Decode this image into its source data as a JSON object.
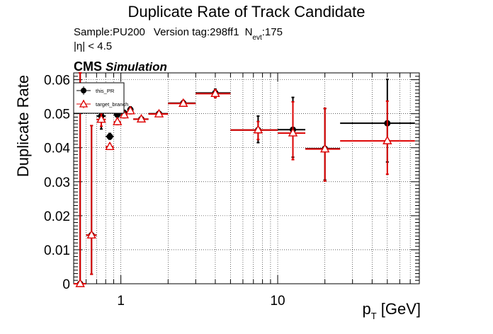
{
  "chart_data": {
    "type": "scatter",
    "title": "Duplicate Rate of Track Candidate",
    "info_line": {
      "sample": "Sample:PU200",
      "version": "Version tag:298ff1",
      "nevt_label": "N",
      "nevt_sub": "evt",
      "nevt_value": ":175"
    },
    "eta_cut": "|η| < 4.5",
    "cms_label": "CMS",
    "simulation_label": "Simulation",
    "xlabel_main": "p",
    "xlabel_sub": "T",
    "xlabel_unit": " [GeV]",
    "ylabel": "Duplicate Rate",
    "xscale": "log",
    "xlim": [
      0.5,
      80
    ],
    "ylim": [
      0,
      0.062
    ],
    "grid": true,
    "legend_position": "top-left",
    "x_tick_labels": [
      {
        "value": 1,
        "label": "1"
      },
      {
        "value": 10,
        "label": "10"
      }
    ],
    "y_tick_labels": [
      {
        "value": 0,
        "label": "0"
      },
      {
        "value": 0.01,
        "label": "0.01"
      },
      {
        "value": 0.02,
        "label": "0.02"
      },
      {
        "value": 0.03,
        "label": "0.03"
      },
      {
        "value": 0.04,
        "label": "0.04"
      },
      {
        "value": 0.05,
        "label": "0.05"
      },
      {
        "value": 0.06,
        "label": "0.06"
      }
    ],
    "series": [
      {
        "name": "this_PR",
        "color": "#000000",
        "marker": "filled-circle",
        "points": [
          {
            "x": 0.55,
            "xlo": 0.5,
            "xhi": 0.6,
            "y": 0.0,
            "ylo": 0.0,
            "yhi": 0.062
          },
          {
            "x": 0.65,
            "xlo": 0.6,
            "xhi": 0.7,
            "y": 0.0143,
            "ylo": 0.0028,
            "yhi": 0.0465
          },
          {
            "x": 0.75,
            "xlo": 0.7,
            "xhi": 0.8,
            "y": 0.0493,
            "ylo": 0.0455,
            "yhi": 0.051
          },
          {
            "x": 0.85,
            "xlo": 0.8,
            "xhi": 0.9,
            "y": 0.0433,
            "ylo": 0.0425,
            "yhi": 0.0442
          },
          {
            "x": 0.95,
            "xlo": 0.9,
            "xhi": 1.0,
            "y": 0.0497,
            "ylo": 0.049,
            "yhi": 0.0503
          },
          {
            "x": 1.05,
            "xlo": 1.0,
            "xhi": 1.1,
            "y": 0.0502,
            "ylo": 0.0494,
            "yhi": 0.051
          },
          {
            "x": 1.15,
            "xlo": 1.1,
            "xhi": 1.2,
            "y": 0.0512,
            "ylo": 0.0504,
            "yhi": 0.052
          },
          {
            "x": 1.35,
            "xlo": 1.2,
            "xhi": 1.5,
            "y": 0.0484,
            "ylo": 0.0479,
            "yhi": 0.049
          },
          {
            "x": 1.75,
            "xlo": 1.5,
            "xhi": 2.0,
            "y": 0.05,
            "ylo": 0.0494,
            "yhi": 0.0506
          },
          {
            "x": 2.5,
            "xlo": 2.0,
            "xhi": 3.0,
            "y": 0.0531,
            "ylo": 0.0524,
            "yhi": 0.0539
          },
          {
            "x": 4.0,
            "xlo": 3.0,
            "xhi": 5.0,
            "y": 0.0561,
            "ylo": 0.0549,
            "yhi": 0.0572
          },
          {
            "x": 7.5,
            "xlo": 5.0,
            "xhi": 10.0,
            "y": 0.0452,
            "ylo": 0.0415,
            "yhi": 0.0493
          },
          {
            "x": 12.5,
            "xlo": 10.0,
            "xhi": 15.0,
            "y": 0.0453,
            "ylo": 0.0372,
            "yhi": 0.0548
          },
          {
            "x": 20.0,
            "xlo": 15.0,
            "xhi": 25.0,
            "y": 0.0397,
            "ylo": 0.0305,
            "yhi": 0.0515
          },
          {
            "x": 50.0,
            "xlo": 25.0,
            "xhi": 75.0,
            "y": 0.0472,
            "ylo": 0.0358,
            "yhi": 0.0601
          }
        ]
      },
      {
        "name": "target_branch",
        "color": "#dd0000",
        "marker": "open-triangle",
        "points": [
          {
            "x": 0.55,
            "xlo": 0.5,
            "xhi": 0.6,
            "y": 0.0,
            "ylo": 0.0,
            "yhi": 0.062
          },
          {
            "x": 0.65,
            "xlo": 0.6,
            "xhi": 0.7,
            "y": 0.0143,
            "ylo": 0.0028,
            "yhi": 0.0465
          },
          {
            "x": 0.75,
            "xlo": 0.7,
            "xhi": 0.8,
            "y": 0.0483,
            "ylo": 0.0463,
            "yhi": 0.05
          },
          {
            "x": 0.85,
            "xlo": 0.8,
            "xhi": 0.9,
            "y": 0.0403,
            "ylo": 0.0396,
            "yhi": 0.0411
          },
          {
            "x": 0.95,
            "xlo": 0.9,
            "xhi": 1.0,
            "y": 0.0476,
            "ylo": 0.0468,
            "yhi": 0.0484
          },
          {
            "x": 1.05,
            "xlo": 1.0,
            "xhi": 1.1,
            "y": 0.0496,
            "ylo": 0.0488,
            "yhi": 0.0504
          },
          {
            "x": 1.15,
            "xlo": 1.1,
            "xhi": 1.2,
            "y": 0.0508,
            "ylo": 0.05,
            "yhi": 0.0516
          },
          {
            "x": 1.35,
            "xlo": 1.2,
            "xhi": 1.5,
            "y": 0.0484,
            "ylo": 0.0479,
            "yhi": 0.049
          },
          {
            "x": 1.75,
            "xlo": 1.5,
            "xhi": 2.0,
            "y": 0.0499,
            "ylo": 0.0493,
            "yhi": 0.0505
          },
          {
            "x": 2.5,
            "xlo": 2.0,
            "xhi": 3.0,
            "y": 0.053,
            "ylo": 0.0523,
            "yhi": 0.0538
          },
          {
            "x": 4.0,
            "xlo": 3.0,
            "xhi": 5.0,
            "y": 0.0559,
            "ylo": 0.0547,
            "yhi": 0.057
          },
          {
            "x": 7.5,
            "xlo": 5.0,
            "xhi": 10.0,
            "y": 0.0452,
            "ylo": 0.0424,
            "yhi": 0.0477
          },
          {
            "x": 12.5,
            "xlo": 10.0,
            "xhi": 15.0,
            "y": 0.0443,
            "ylo": 0.0365,
            "yhi": 0.0535
          },
          {
            "x": 20.0,
            "xlo": 15.0,
            "xhi": 25.0,
            "y": 0.0396,
            "ylo": 0.0302,
            "yhi": 0.0516
          },
          {
            "x": 50.0,
            "xlo": 25.0,
            "xhi": 75.0,
            "y": 0.042,
            "ylo": 0.0322,
            "yhi": 0.0537
          }
        ]
      }
    ]
  }
}
